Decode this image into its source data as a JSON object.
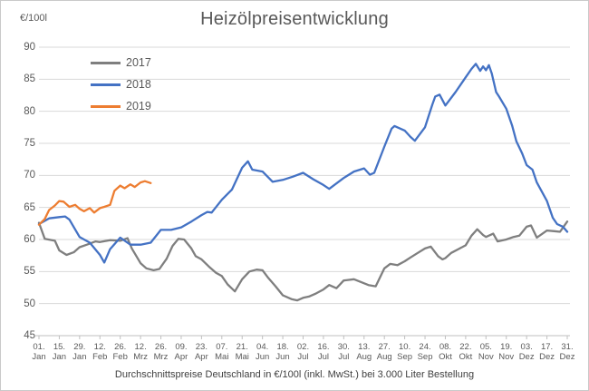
{
  "title": "Heizölpreisentwicklung",
  "y_axis_unit_label": "€/100l",
  "subtitle": "Durchschnittspreise Deutschland in €/100l (inkl. MwSt.) bei 3.000 Liter Bestellung",
  "colors": {
    "series_2017": "#7F7F7F",
    "series_2018": "#4472C4",
    "series_2019": "#ED7D31",
    "gridline": "#D9D9D9",
    "axis_line": "#BFBFBF",
    "text": "#595959",
    "subtitle_text": "#404040",
    "background": "#FFFFFF"
  },
  "chart_data": {
    "type": "line",
    "title": "Heizölpreisentwicklung",
    "subtitle": "Durchschnittspreise Deutschland in €/100l (inkl. MwSt.) bei 3.000 Liter Bestellung",
    "ylabel": "€/100l",
    "ylim": [
      45,
      90
    ],
    "ytick_step": 5,
    "yticks": [
      45,
      50,
      55,
      60,
      65,
      70,
      75,
      80,
      85,
      90
    ],
    "grid": true,
    "legend_position": "inside-top-left",
    "x_unit": "day of year (0 = 01. Jan, 364 = 31. Dez)",
    "xtick_days": [
      0,
      14,
      28,
      42,
      56,
      70,
      84,
      98,
      112,
      126,
      140,
      154,
      168,
      182,
      196,
      210,
      224,
      238,
      252,
      266,
      280,
      294,
      308,
      322,
      336,
      350,
      364
    ],
    "xtick_labels": [
      [
        "01.",
        "Jan"
      ],
      [
        "15.",
        "Jan"
      ],
      [
        "29.",
        "Jan"
      ],
      [
        "12.",
        "Feb"
      ],
      [
        "26.",
        "Feb"
      ],
      [
        "12.",
        "Mrz"
      ],
      [
        "26.",
        "Mrz"
      ],
      [
        "09.",
        "Apr"
      ],
      [
        "23.",
        "Apr"
      ],
      [
        "07.",
        "Mai"
      ],
      [
        "21.",
        "Mai"
      ],
      [
        "04.",
        "Jun"
      ],
      [
        "18.",
        "Jun"
      ],
      [
        "02.",
        "Jul"
      ],
      [
        "16.",
        "Jul"
      ],
      [
        "30.",
        "Jul"
      ],
      [
        "13.",
        "Aug"
      ],
      [
        "27.",
        "Aug"
      ],
      [
        "10.",
        "Sep"
      ],
      [
        "24.",
        "Sep"
      ],
      [
        "08.",
        "Okt"
      ],
      [
        "22.",
        "Okt"
      ],
      [
        "05.",
        "Nov"
      ],
      [
        "19.",
        "Nov"
      ],
      [
        "03.",
        "Dez"
      ],
      [
        "17.",
        "Dez"
      ],
      [
        "31.",
        "Dez"
      ]
    ],
    "series": [
      {
        "name": "2017",
        "color": "#7F7F7F",
        "points": [
          [
            0,
            62.6
          ],
          [
            4,
            60.1
          ],
          [
            11,
            59.8
          ],
          [
            14,
            58.3
          ],
          [
            19,
            57.6
          ],
          [
            24,
            58.0
          ],
          [
            28,
            58.8
          ],
          [
            33,
            59.2
          ],
          [
            39,
            59.7
          ],
          [
            42,
            59.6
          ],
          [
            49,
            59.9
          ],
          [
            56,
            59.8
          ],
          [
            61,
            60.2
          ],
          [
            64,
            58.6
          ],
          [
            70,
            56.3
          ],
          [
            74,
            55.5
          ],
          [
            79,
            55.2
          ],
          [
            83,
            55.4
          ],
          [
            88,
            57.0
          ],
          [
            92,
            59.0
          ],
          [
            96,
            60.1
          ],
          [
            100,
            60.0
          ],
          [
            105,
            58.6
          ],
          [
            108,
            57.4
          ],
          [
            112,
            56.9
          ],
          [
            117,
            55.8
          ],
          [
            122,
            54.8
          ],
          [
            126,
            54.3
          ],
          [
            130,
            53.0
          ],
          [
            135,
            51.9
          ],
          [
            140,
            53.8
          ],
          [
            145,
            55.0
          ],
          [
            150,
            55.3
          ],
          [
            154,
            55.2
          ],
          [
            158,
            54.0
          ],
          [
            163,
            52.7
          ],
          [
            168,
            51.3
          ],
          [
            174,
            50.7
          ],
          [
            178,
            50.5
          ],
          [
            182,
            50.9
          ],
          [
            186,
            51.1
          ],
          [
            191,
            51.6
          ],
          [
            196,
            52.2
          ],
          [
            200,
            52.9
          ],
          [
            205,
            52.4
          ],
          [
            210,
            53.6
          ],
          [
            217,
            53.8
          ],
          [
            227,
            52.9
          ],
          [
            232,
            52.7
          ],
          [
            238,
            55.5
          ],
          [
            242,
            56.2
          ],
          [
            247,
            56.0
          ],
          [
            252,
            56.6
          ],
          [
            256,
            57.2
          ],
          [
            261,
            57.9
          ],
          [
            266,
            58.6
          ],
          [
            270,
            58.9
          ],
          [
            275,
            57.4
          ],
          [
            278,
            56.9
          ],
          [
            280,
            57.1
          ],
          [
            284,
            57.9
          ],
          [
            289,
            58.5
          ],
          [
            294,
            59.1
          ],
          [
            298,
            60.6
          ],
          [
            302,
            61.6
          ],
          [
            306,
            60.7
          ],
          [
            308,
            60.4
          ],
          [
            313,
            60.9
          ],
          [
            316,
            59.7
          ],
          [
            322,
            60.0
          ],
          [
            327,
            60.4
          ],
          [
            331,
            60.6
          ],
          [
            336,
            62.0
          ],
          [
            339,
            62.2
          ],
          [
            343,
            60.3
          ],
          [
            350,
            61.4
          ],
          [
            355,
            61.3
          ],
          [
            359,
            61.2
          ],
          [
            364,
            62.8
          ]
        ]
      },
      {
        "name": "2018",
        "color": "#4472C4",
        "points": [
          [
            0,
            62.4
          ],
          [
            7,
            63.3
          ],
          [
            14,
            63.5
          ],
          [
            18,
            63.6
          ],
          [
            21,
            63.1
          ],
          [
            28,
            60.4
          ],
          [
            35,
            59.5
          ],
          [
            42,
            57.6
          ],
          [
            45,
            56.4
          ],
          [
            49,
            58.5
          ],
          [
            56,
            60.3
          ],
          [
            63,
            59.2
          ],
          [
            70,
            59.2
          ],
          [
            77,
            59.5
          ],
          [
            84,
            61.5
          ],
          [
            91,
            61.5
          ],
          [
            98,
            61.9
          ],
          [
            105,
            62.8
          ],
          [
            112,
            63.8
          ],
          [
            116,
            64.3
          ],
          [
            119,
            64.2
          ],
          [
            126,
            66.2
          ],
          [
            133,
            67.8
          ],
          [
            140,
            71.2
          ],
          [
            144,
            72.2
          ],
          [
            147,
            70.9
          ],
          [
            154,
            70.6
          ],
          [
            161,
            69.0
          ],
          [
            168,
            69.3
          ],
          [
            175,
            69.8
          ],
          [
            182,
            70.4
          ],
          [
            189,
            69.4
          ],
          [
            196,
            68.5
          ],
          [
            200,
            67.9
          ],
          [
            203,
            68.4
          ],
          [
            210,
            69.6
          ],
          [
            217,
            70.6
          ],
          [
            224,
            71.1
          ],
          [
            228,
            70.1
          ],
          [
            231,
            70.4
          ],
          [
            238,
            74.5
          ],
          [
            243,
            77.3
          ],
          [
            245,
            77.7
          ],
          [
            252,
            77.0
          ],
          [
            256,
            76.0
          ],
          [
            259,
            75.4
          ],
          [
            266,
            77.5
          ],
          [
            271,
            81.0
          ],
          [
            273,
            82.3
          ],
          [
            276,
            82.6
          ],
          [
            280,
            80.9
          ],
          [
            287,
            83.0
          ],
          [
            294,
            85.3
          ],
          [
            298,
            86.6
          ],
          [
            301,
            87.4
          ],
          [
            304,
            86.3
          ],
          [
            306,
            87.0
          ],
          [
            308,
            86.4
          ],
          [
            310,
            87.2
          ],
          [
            312,
            85.9
          ],
          [
            315,
            83.0
          ],
          [
            317,
            82.3
          ],
          [
            322,
            80.4
          ],
          [
            326,
            77.8
          ],
          [
            329,
            75.3
          ],
          [
            333,
            73.4
          ],
          [
            336,
            71.6
          ],
          [
            340,
            70.9
          ],
          [
            343,
            68.9
          ],
          [
            350,
            66.0
          ],
          [
            354,
            63.4
          ],
          [
            357,
            62.4
          ],
          [
            361,
            62.0
          ],
          [
            364,
            61.2
          ]
        ]
      },
      {
        "name": "2019",
        "color": "#ED7D31",
        "points": [
          [
            0,
            62.3
          ],
          [
            4,
            63.2
          ],
          [
            7,
            64.6
          ],
          [
            11,
            65.3
          ],
          [
            14,
            66.0
          ],
          [
            17,
            65.9
          ],
          [
            21,
            65.1
          ],
          [
            25,
            65.4
          ],
          [
            28,
            64.8
          ],
          [
            31,
            64.4
          ],
          [
            35,
            64.9
          ],
          [
            38,
            64.2
          ],
          [
            42,
            64.9
          ],
          [
            45,
            65.1
          ],
          [
            49,
            65.4
          ],
          [
            52,
            67.6
          ],
          [
            56,
            68.4
          ],
          [
            59,
            68.0
          ],
          [
            63,
            68.6
          ],
          [
            66,
            68.2
          ],
          [
            70,
            68.9
          ],
          [
            73,
            69.1
          ],
          [
            77,
            68.8
          ]
        ]
      }
    ]
  }
}
